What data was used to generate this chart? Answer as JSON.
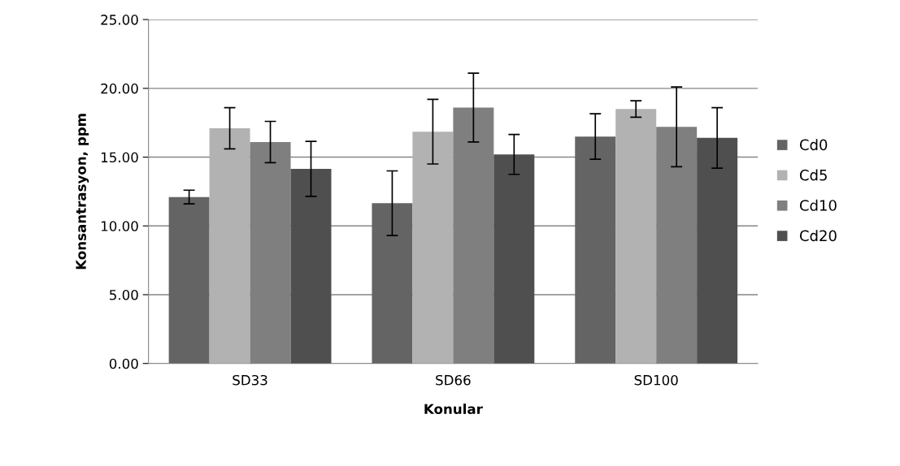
{
  "chart_data": {
    "type": "bar",
    "xlabel": "Konular",
    "ylabel": "Konsantrasyon, ppm",
    "categories": [
      "SD33",
      "SD66",
      "SD100"
    ],
    "series": [
      {
        "name": "Cd0",
        "color": "#646464",
        "values": [
          12.1,
          11.65,
          16.5
        ],
        "errors": [
          0.5,
          2.35,
          1.65
        ]
      },
      {
        "name": "Cd5",
        "color": "#b2b2b2",
        "values": [
          17.1,
          16.85,
          18.5
        ],
        "errors": [
          1.5,
          2.35,
          0.6
        ]
      },
      {
        "name": "Cd10",
        "color": "#7f7f7f",
        "values": [
          16.1,
          18.6,
          17.2
        ],
        "errors": [
          1.5,
          2.5,
          2.9
        ]
      },
      {
        "name": "Cd20",
        "color": "#4f4f4f",
        "values": [
          14.15,
          15.2,
          16.4
        ],
        "errors": [
          2.0,
          1.45,
          2.2
        ]
      }
    ],
    "ylim": [
      0,
      25
    ],
    "yticks": [
      {
        "value": 0,
        "label": "0.00"
      },
      {
        "value": 5,
        "label": "5.00"
      },
      {
        "value": 10,
        "label": "10.00"
      },
      {
        "value": 15,
        "label": "15.00"
      },
      {
        "value": 20,
        "label": "20.00"
      },
      {
        "value": 25,
        "label": "25.00"
      }
    ],
    "grid": "y",
    "legend": "right"
  }
}
